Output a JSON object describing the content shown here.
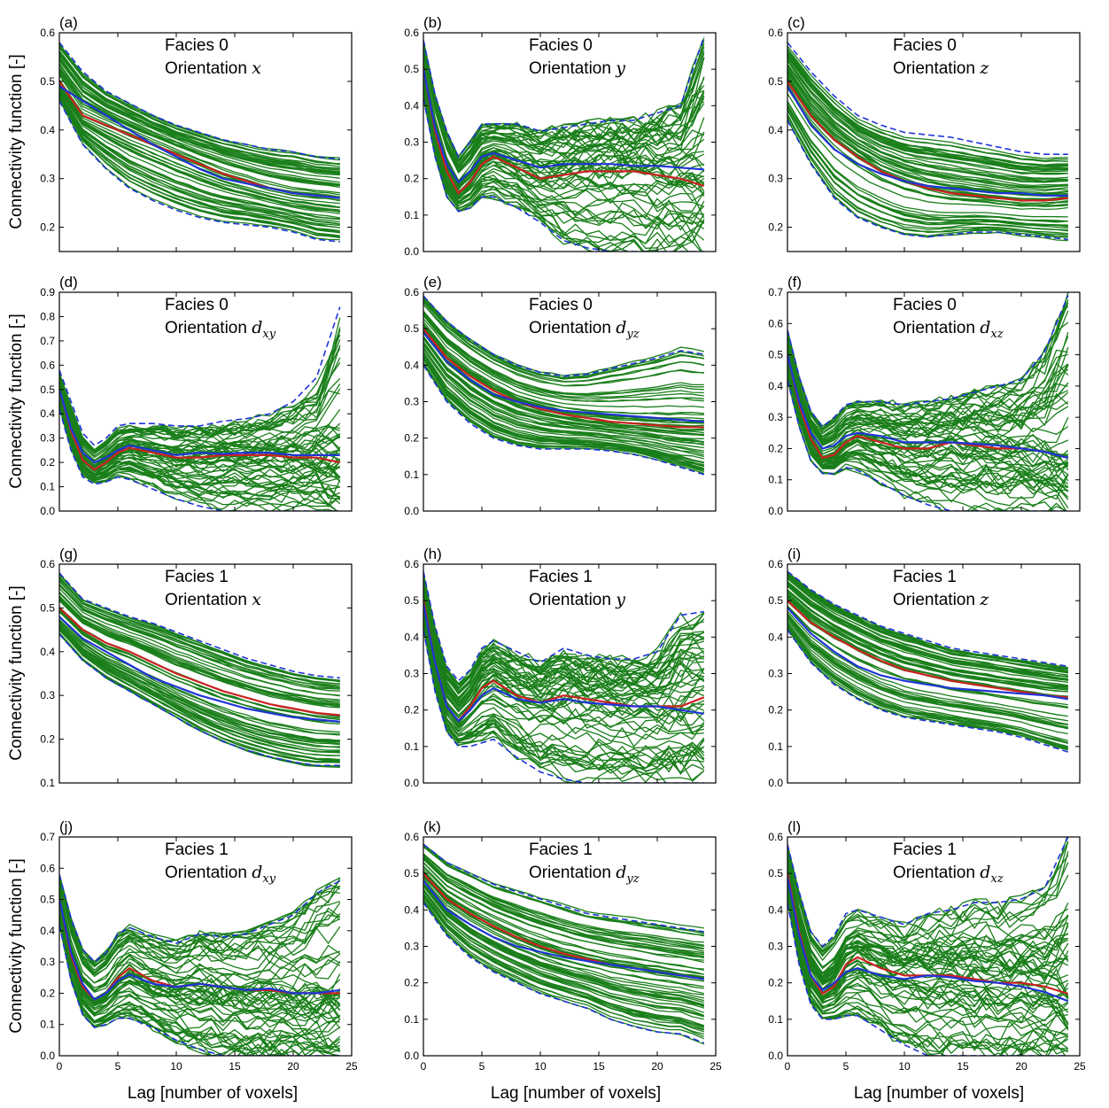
{
  "figure": {
    "ylabel": "Connectivity function [-]",
    "xlabel": "Lag [number of voxels]",
    "xticks": [
      0,
      5,
      10,
      15,
      20,
      25
    ]
  },
  "colors": {
    "realizations": "#1a7f1a",
    "mean": "#cc2222",
    "reference": "#1f35d6",
    "envelope": "#1f35d6"
  },
  "chart_data": [
    {
      "type": "line",
      "panel": "(a)",
      "facies": "Facies 0",
      "orientation_prefix": "Orientation ",
      "orientation_var": "x",
      "orientation_sub": "",
      "xlim": [
        0,
        25
      ],
      "ylim": [
        0.15,
        0.6
      ],
      "yticks": [
        0.2,
        0.3,
        0.4,
        0.5,
        0.6
      ],
      "show_xticklabels": false,
      "kind": "decay",
      "x": [
        0,
        2,
        4,
        6,
        8,
        10,
        12,
        14,
        16,
        18,
        20,
        22,
        24
      ],
      "mean": [
        0.5,
        0.43,
        0.41,
        0.39,
        0.37,
        0.35,
        0.33,
        0.31,
        0.295,
        0.28,
        0.27,
        0.265,
        0.26
      ],
      "reference": [
        0.49,
        0.46,
        0.43,
        0.4,
        0.37,
        0.345,
        0.32,
        0.3,
        0.29,
        0.28,
        0.27,
        0.265,
        0.26
      ],
      "upper": [
        0.58,
        0.52,
        0.48,
        0.455,
        0.43,
        0.41,
        0.395,
        0.38,
        0.37,
        0.36,
        0.355,
        0.345,
        0.34
      ],
      "lower": [
        0.46,
        0.37,
        0.32,
        0.28,
        0.255,
        0.235,
        0.22,
        0.21,
        0.205,
        0.2,
        0.19,
        0.175,
        0.17
      ],
      "n_realizations": 60
    },
    {
      "type": "line",
      "panel": "(b)",
      "facies": "Facies 0",
      "orientation_prefix": "Orientation ",
      "orientation_var": "y",
      "orientation_sub": "",
      "xlim": [
        0,
        25
      ],
      "ylim": [
        0.0,
        0.6
      ],
      "yticks": [
        0.0,
        0.1,
        0.2,
        0.3,
        0.4,
        0.5,
        0.6
      ],
      "show_xticklabels": false,
      "kind": "oscillate",
      "x": [
        0,
        1,
        2,
        3,
        4,
        5,
        6,
        8,
        10,
        12,
        14,
        16,
        18,
        20,
        22,
        24
      ],
      "mean": [
        0.5,
        0.33,
        0.22,
        0.16,
        0.19,
        0.24,
        0.26,
        0.23,
        0.2,
        0.21,
        0.22,
        0.22,
        0.22,
        0.21,
        0.2,
        0.18
      ],
      "reference": [
        0.5,
        0.34,
        0.24,
        0.19,
        0.22,
        0.26,
        0.27,
        0.25,
        0.23,
        0.24,
        0.24,
        0.24,
        0.235,
        0.235,
        0.23,
        0.225
      ],
      "upper": [
        0.58,
        0.43,
        0.33,
        0.26,
        0.3,
        0.35,
        0.35,
        0.35,
        0.33,
        0.34,
        0.35,
        0.36,
        0.36,
        0.38,
        0.4,
        0.59
      ],
      "lower": [
        0.42,
        0.26,
        0.15,
        0.11,
        0.12,
        0.15,
        0.15,
        0.12,
        0.08,
        0.03,
        0.01,
        0.0,
        0.0,
        0.0,
        0.0,
        0.0
      ],
      "n_realizations": 60
    },
    {
      "type": "line",
      "panel": "(c)",
      "facies": "Facies 0",
      "orientation_prefix": "Orientation ",
      "orientation_var": "z",
      "orientation_sub": "",
      "xlim": [
        0,
        25
      ],
      "ylim": [
        0.15,
        0.6
      ],
      "yticks": [
        0.2,
        0.3,
        0.4,
        0.5,
        0.6
      ],
      "show_xticklabels": false,
      "kind": "decay",
      "x": [
        0,
        2,
        4,
        6,
        8,
        10,
        12,
        14,
        16,
        18,
        20,
        22,
        24
      ],
      "mean": [
        0.5,
        0.43,
        0.38,
        0.345,
        0.315,
        0.295,
        0.28,
        0.27,
        0.265,
        0.26,
        0.255,
        0.255,
        0.26
      ],
      "reference": [
        0.49,
        0.41,
        0.36,
        0.33,
        0.31,
        0.295,
        0.285,
        0.28,
        0.275,
        0.27,
        0.27,
        0.265,
        0.265
      ],
      "upper": [
        0.58,
        0.52,
        0.47,
        0.43,
        0.41,
        0.395,
        0.39,
        0.385,
        0.375,
        0.365,
        0.355,
        0.35,
        0.35
      ],
      "lower": [
        0.42,
        0.33,
        0.26,
        0.22,
        0.2,
        0.185,
        0.18,
        0.185,
        0.19,
        0.19,
        0.185,
        0.18,
        0.175
      ],
      "n_realizations": 60
    },
    {
      "type": "line",
      "panel": "(d)",
      "facies": "Facies 0",
      "orientation_prefix": "Orientation ",
      "orientation_var": "d",
      "orientation_sub": "xy",
      "xlim": [
        0,
        25
      ],
      "ylim": [
        0.0,
        0.9
      ],
      "yticks": [
        0.0,
        0.1,
        0.2,
        0.3,
        0.4,
        0.5,
        0.6,
        0.7,
        0.8,
        0.9
      ],
      "show_xticklabels": false,
      "kind": "oscillate",
      "x": [
        0,
        1,
        2,
        3,
        4,
        5,
        6,
        8,
        10,
        12,
        14,
        16,
        18,
        20,
        22,
        24
      ],
      "mean": [
        0.5,
        0.33,
        0.21,
        0.17,
        0.2,
        0.24,
        0.26,
        0.24,
        0.22,
        0.22,
        0.23,
        0.23,
        0.23,
        0.22,
        0.22,
        0.2
      ],
      "reference": [
        0.5,
        0.34,
        0.24,
        0.2,
        0.22,
        0.25,
        0.27,
        0.25,
        0.23,
        0.24,
        0.235,
        0.24,
        0.24,
        0.23,
        0.23,
        0.23
      ],
      "upper": [
        0.58,
        0.45,
        0.32,
        0.27,
        0.3,
        0.35,
        0.36,
        0.36,
        0.35,
        0.35,
        0.37,
        0.38,
        0.4,
        0.45,
        0.55,
        0.84
      ],
      "lower": [
        0.42,
        0.25,
        0.14,
        0.11,
        0.12,
        0.14,
        0.13,
        0.09,
        0.05,
        0.02,
        0.0,
        0.0,
        0.0,
        0.0,
        0.0,
        0.0
      ],
      "n_realizations": 60
    },
    {
      "type": "line",
      "panel": "(e)",
      "facies": "Facies 0",
      "orientation_prefix": "Orientation ",
      "orientation_var": "d",
      "orientation_sub": "yz",
      "xlim": [
        0,
        25
      ],
      "ylim": [
        0.0,
        0.6
      ],
      "yticks": [
        0.0,
        0.1,
        0.2,
        0.3,
        0.4,
        0.5,
        0.6
      ],
      "show_xticklabels": false,
      "kind": "decay",
      "x": [
        0,
        2,
        4,
        6,
        8,
        10,
        12,
        14,
        16,
        18,
        20,
        22,
        24
      ],
      "mean": [
        0.5,
        0.42,
        0.37,
        0.33,
        0.3,
        0.28,
        0.265,
        0.255,
        0.245,
        0.24,
        0.235,
        0.23,
        0.23
      ],
      "reference": [
        0.49,
        0.41,
        0.36,
        0.32,
        0.3,
        0.285,
        0.275,
        0.27,
        0.265,
        0.26,
        0.255,
        0.25,
        0.245
      ],
      "upper": [
        0.59,
        0.52,
        0.47,
        0.43,
        0.4,
        0.38,
        0.37,
        0.375,
        0.39,
        0.405,
        0.42,
        0.44,
        0.43
      ],
      "lower": [
        0.4,
        0.3,
        0.24,
        0.2,
        0.18,
        0.17,
        0.17,
        0.17,
        0.165,
        0.155,
        0.14,
        0.12,
        0.1
      ],
      "n_realizations": 60
    },
    {
      "type": "line",
      "panel": "(f)",
      "facies": "Facies 0",
      "orientation_prefix": "Orientation ",
      "orientation_var": "d",
      "orientation_sub": "xz",
      "xlim": [
        0,
        25
      ],
      "ylim": [
        0.0,
        0.7
      ],
      "yticks": [
        0.0,
        0.1,
        0.2,
        0.3,
        0.4,
        0.5,
        0.6,
        0.7
      ],
      "show_xticklabels": false,
      "kind": "oscillate",
      "x": [
        0,
        1,
        2,
        3,
        4,
        5,
        6,
        8,
        10,
        12,
        14,
        16,
        18,
        20,
        22,
        24
      ],
      "mean": [
        0.5,
        0.34,
        0.23,
        0.17,
        0.18,
        0.22,
        0.24,
        0.22,
        0.2,
        0.2,
        0.22,
        0.21,
        0.2,
        0.2,
        0.19,
        0.17
      ],
      "reference": [
        0.5,
        0.35,
        0.25,
        0.2,
        0.21,
        0.24,
        0.25,
        0.24,
        0.22,
        0.22,
        0.22,
        0.215,
        0.21,
        0.2,
        0.19,
        0.17
      ],
      "upper": [
        0.58,
        0.43,
        0.32,
        0.27,
        0.3,
        0.34,
        0.35,
        0.35,
        0.34,
        0.35,
        0.36,
        0.38,
        0.4,
        0.42,
        0.51,
        0.69
      ],
      "lower": [
        0.42,
        0.27,
        0.16,
        0.12,
        0.12,
        0.14,
        0.13,
        0.09,
        0.05,
        0.02,
        0.0,
        0.0,
        0.0,
        0.0,
        0.0,
        0.0
      ],
      "n_realizations": 60
    },
    {
      "type": "line",
      "panel": "(g)",
      "facies": "Facies 1",
      "orientation_prefix": "Orientation ",
      "orientation_var": "x",
      "orientation_sub": "",
      "xlim": [
        0,
        25
      ],
      "ylim": [
        0.1,
        0.6
      ],
      "yticks": [
        0.1,
        0.2,
        0.3,
        0.4,
        0.5,
        0.6
      ],
      "show_xticklabels": false,
      "kind": "decay",
      "x": [
        0,
        2,
        4,
        6,
        8,
        10,
        12,
        14,
        16,
        18,
        20,
        22,
        24
      ],
      "mean": [
        0.5,
        0.45,
        0.42,
        0.4,
        0.375,
        0.35,
        0.33,
        0.31,
        0.295,
        0.28,
        0.27,
        0.26,
        0.255
      ],
      "reference": [
        0.48,
        0.43,
        0.4,
        0.37,
        0.34,
        0.32,
        0.3,
        0.285,
        0.27,
        0.26,
        0.25,
        0.245,
        0.24
      ],
      "upper": [
        0.58,
        0.52,
        0.5,
        0.48,
        0.465,
        0.445,
        0.425,
        0.405,
        0.385,
        0.37,
        0.355,
        0.345,
        0.34
      ],
      "lower": [
        0.44,
        0.38,
        0.34,
        0.31,
        0.28,
        0.25,
        0.22,
        0.195,
        0.175,
        0.16,
        0.148,
        0.14,
        0.14
      ],
      "n_realizations": 60
    },
    {
      "type": "line",
      "panel": "(h)",
      "facies": "Facies 1",
      "orientation_prefix": "Orientation ",
      "orientation_var": "y",
      "orientation_sub": "",
      "xlim": [
        0,
        25
      ],
      "ylim": [
        0.0,
        0.6
      ],
      "yticks": [
        0.0,
        0.1,
        0.2,
        0.3,
        0.4,
        0.5,
        0.6
      ],
      "show_xticklabels": false,
      "kind": "oscillate",
      "x": [
        0,
        1,
        2,
        3,
        4,
        5,
        6,
        8,
        10,
        12,
        14,
        16,
        18,
        20,
        22,
        24
      ],
      "mean": [
        0.5,
        0.33,
        0.21,
        0.17,
        0.21,
        0.26,
        0.28,
        0.24,
        0.22,
        0.24,
        0.23,
        0.22,
        0.21,
        0.21,
        0.21,
        0.235
      ],
      "reference": [
        0.49,
        0.33,
        0.21,
        0.17,
        0.2,
        0.24,
        0.26,
        0.23,
        0.22,
        0.23,
        0.22,
        0.215,
        0.21,
        0.21,
        0.2,
        0.19
      ],
      "upper": [
        0.58,
        0.43,
        0.32,
        0.28,
        0.31,
        0.37,
        0.39,
        0.36,
        0.33,
        0.37,
        0.35,
        0.34,
        0.34,
        0.36,
        0.46,
        0.47
      ],
      "lower": [
        0.42,
        0.25,
        0.14,
        0.1,
        0.1,
        0.11,
        0.12,
        0.07,
        0.03,
        0.01,
        0.0,
        0.0,
        0.0,
        0.0,
        0.0,
        0.0
      ],
      "n_realizations": 60
    },
    {
      "type": "line",
      "panel": "(i)",
      "facies": "Facies 1",
      "orientation_prefix": "Orientation ",
      "orientation_var": "z",
      "orientation_sub": "",
      "xlim": [
        0,
        25
      ],
      "ylim": [
        0.0,
        0.6
      ],
      "yticks": [
        0.0,
        0.1,
        0.2,
        0.3,
        0.4,
        0.5,
        0.6
      ],
      "show_xticklabels": false,
      "kind": "decay",
      "x": [
        0,
        2,
        4,
        6,
        8,
        10,
        12,
        14,
        16,
        18,
        20,
        22,
        24
      ],
      "mean": [
        0.5,
        0.44,
        0.4,
        0.365,
        0.335,
        0.31,
        0.295,
        0.28,
        0.27,
        0.26,
        0.25,
        0.24,
        0.235
      ],
      "reference": [
        0.48,
        0.41,
        0.36,
        0.32,
        0.295,
        0.28,
        0.27,
        0.26,
        0.255,
        0.25,
        0.245,
        0.24,
        0.23
      ],
      "upper": [
        0.58,
        0.53,
        0.49,
        0.46,
        0.43,
        0.41,
        0.39,
        0.37,
        0.36,
        0.35,
        0.34,
        0.33,
        0.32
      ],
      "lower": [
        0.42,
        0.33,
        0.27,
        0.23,
        0.2,
        0.18,
        0.17,
        0.16,
        0.15,
        0.14,
        0.125,
        0.105,
        0.085
      ],
      "n_realizations": 60
    },
    {
      "type": "line",
      "panel": "(j)",
      "facies": "Facies 1",
      "orientation_prefix": "Orientation ",
      "orientation_var": "d",
      "orientation_sub": "xy",
      "xlim": [
        0,
        25
      ],
      "ylim": [
        0.0,
        0.7
      ],
      "yticks": [
        0.0,
        0.1,
        0.2,
        0.3,
        0.4,
        0.5,
        0.6,
        0.7
      ],
      "show_xticklabels": true,
      "kind": "oscillate",
      "x": [
        0,
        1,
        2,
        3,
        4,
        5,
        6,
        8,
        10,
        12,
        14,
        16,
        18,
        20,
        22,
        24
      ],
      "mean": [
        0.5,
        0.32,
        0.22,
        0.18,
        0.2,
        0.25,
        0.28,
        0.24,
        0.22,
        0.23,
        0.22,
        0.21,
        0.21,
        0.2,
        0.2,
        0.2
      ],
      "reference": [
        0.5,
        0.33,
        0.23,
        0.18,
        0.2,
        0.24,
        0.26,
        0.23,
        0.22,
        0.23,
        0.22,
        0.21,
        0.215,
        0.2,
        0.2,
        0.21
      ],
      "upper": [
        0.58,
        0.44,
        0.34,
        0.3,
        0.33,
        0.39,
        0.41,
        0.38,
        0.36,
        0.39,
        0.38,
        0.39,
        0.42,
        0.45,
        0.52,
        0.56
      ],
      "lower": [
        0.42,
        0.24,
        0.13,
        0.09,
        0.1,
        0.12,
        0.12,
        0.09,
        0.05,
        0.02,
        0.0,
        0.0,
        0.0,
        0.0,
        0.0,
        0.0
      ],
      "n_realizations": 60
    },
    {
      "type": "line",
      "panel": "(k)",
      "facies": "Facies 1",
      "orientation_prefix": "Orientation ",
      "orientation_var": "d",
      "orientation_sub": "yz",
      "xlim": [
        0,
        25
      ],
      "ylim": [
        0.0,
        0.6
      ],
      "yticks": [
        0.0,
        0.1,
        0.2,
        0.3,
        0.4,
        0.5,
        0.6
      ],
      "show_xticklabels": true,
      "kind": "decay",
      "x": [
        0,
        2,
        4,
        6,
        8,
        10,
        12,
        14,
        16,
        18,
        20,
        22,
        24
      ],
      "mean": [
        0.5,
        0.43,
        0.39,
        0.355,
        0.325,
        0.3,
        0.28,
        0.265,
        0.25,
        0.24,
        0.23,
        0.22,
        0.21
      ],
      "reference": [
        0.48,
        0.4,
        0.36,
        0.325,
        0.3,
        0.285,
        0.27,
        0.26,
        0.25,
        0.24,
        0.23,
        0.22,
        0.21
      ],
      "upper": [
        0.58,
        0.53,
        0.5,
        0.47,
        0.45,
        0.43,
        0.41,
        0.39,
        0.38,
        0.37,
        0.36,
        0.35,
        0.34
      ],
      "lower": [
        0.42,
        0.33,
        0.27,
        0.23,
        0.2,
        0.17,
        0.15,
        0.13,
        0.1,
        0.08,
        0.065,
        0.06,
        0.035
      ],
      "n_realizations": 60
    },
    {
      "type": "line",
      "panel": "(l)",
      "facies": "Facies 1",
      "orientation_prefix": "Orientation ",
      "orientation_var": "d",
      "orientation_sub": "xz",
      "xlim": [
        0,
        25
      ],
      "ylim": [
        0.0,
        0.6
      ],
      "yticks": [
        0.0,
        0.1,
        0.2,
        0.3,
        0.4,
        0.5,
        0.6
      ],
      "show_xticklabels": true,
      "kind": "oscillate",
      "x": [
        0,
        1,
        2,
        3,
        4,
        5,
        6,
        8,
        10,
        12,
        14,
        16,
        18,
        20,
        22,
        24
      ],
      "mean": [
        0.5,
        0.34,
        0.22,
        0.17,
        0.19,
        0.25,
        0.27,
        0.24,
        0.22,
        0.22,
        0.22,
        0.21,
        0.2,
        0.2,
        0.19,
        0.17
      ],
      "reference": [
        0.49,
        0.33,
        0.22,
        0.18,
        0.2,
        0.23,
        0.24,
        0.22,
        0.21,
        0.22,
        0.215,
        0.205,
        0.2,
        0.19,
        0.175,
        0.15
      ],
      "upper": [
        0.58,
        0.45,
        0.34,
        0.3,
        0.33,
        0.39,
        0.4,
        0.38,
        0.36,
        0.39,
        0.4,
        0.42,
        0.42,
        0.43,
        0.46,
        0.6
      ],
      "lower": [
        0.42,
        0.25,
        0.14,
        0.1,
        0.1,
        0.11,
        0.11,
        0.07,
        0.03,
        0.0,
        0.0,
        0.0,
        0.0,
        0.0,
        0.0,
        0.0
      ],
      "n_realizations": 60
    }
  ]
}
